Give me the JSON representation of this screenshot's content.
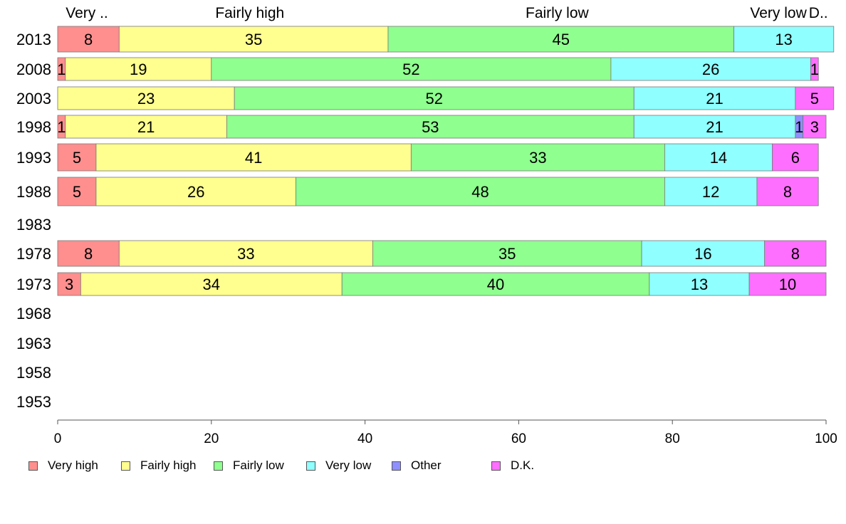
{
  "chart_data": {
    "type": "bar",
    "orientation": "horizontal",
    "stacked": true,
    "title": "",
    "xlabel": "",
    "ylabel": "",
    "xlim": [
      0,
      100
    ],
    "x_ticks": [
      "0",
      "20",
      "40",
      "60",
      "80",
      "100"
    ],
    "categories": [
      "2013",
      "2008",
      "2003",
      "1998",
      "1993",
      "1988",
      "1983",
      "1978",
      "1973",
      "1968",
      "1963",
      "1958",
      "1953"
    ],
    "series": [
      {
        "name": "Very high",
        "color": "#ff8f8f",
        "values": [
          8,
          1,
          0,
          1,
          5,
          5,
          null,
          8,
          3,
          null,
          null,
          null,
          null
        ]
      },
      {
        "name": "Fairly high",
        "color": "#ffff8f",
        "values": [
          35,
          19,
          23,
          21,
          41,
          26,
          null,
          33,
          34,
          null,
          null,
          null,
          null
        ]
      },
      {
        "name": "Fairly low",
        "color": "#8fff8f",
        "values": [
          45,
          52,
          52,
          53,
          33,
          48,
          null,
          35,
          40,
          null,
          null,
          null,
          null
        ]
      },
      {
        "name": "Very low",
        "color": "#8fffff",
        "values": [
          13,
          26,
          21,
          21,
          14,
          12,
          null,
          16,
          13,
          null,
          null,
          null,
          null
        ]
      },
      {
        "name": "Other",
        "color": "#8f8fff",
        "values": [
          0,
          0,
          0,
          1,
          0,
          0,
          null,
          0,
          0,
          null,
          null,
          null,
          null
        ]
      },
      {
        "name": "D.K.",
        "color": "#ff6fff",
        "values": [
          0,
          1,
          5,
          3,
          6,
          8,
          null,
          8,
          10,
          null,
          null,
          null,
          null
        ]
      }
    ],
    "top_labels": [
      {
        "text": "Very ..",
        "x": 3.8
      },
      {
        "text": "Fairly high",
        "x": 25.0
      },
      {
        "text": "Fairly low",
        "x": 65.0
      },
      {
        "text": "Very low",
        "x": 93.8
      },
      {
        "text": "D..",
        "x": 99.0
      }
    ],
    "legend": {
      "placement": "bottom",
      "items": [
        "Very high",
        "Fairly high",
        "Fairly low",
        "Very low",
        "Other",
        "D.K."
      ]
    },
    "grid": false
  }
}
